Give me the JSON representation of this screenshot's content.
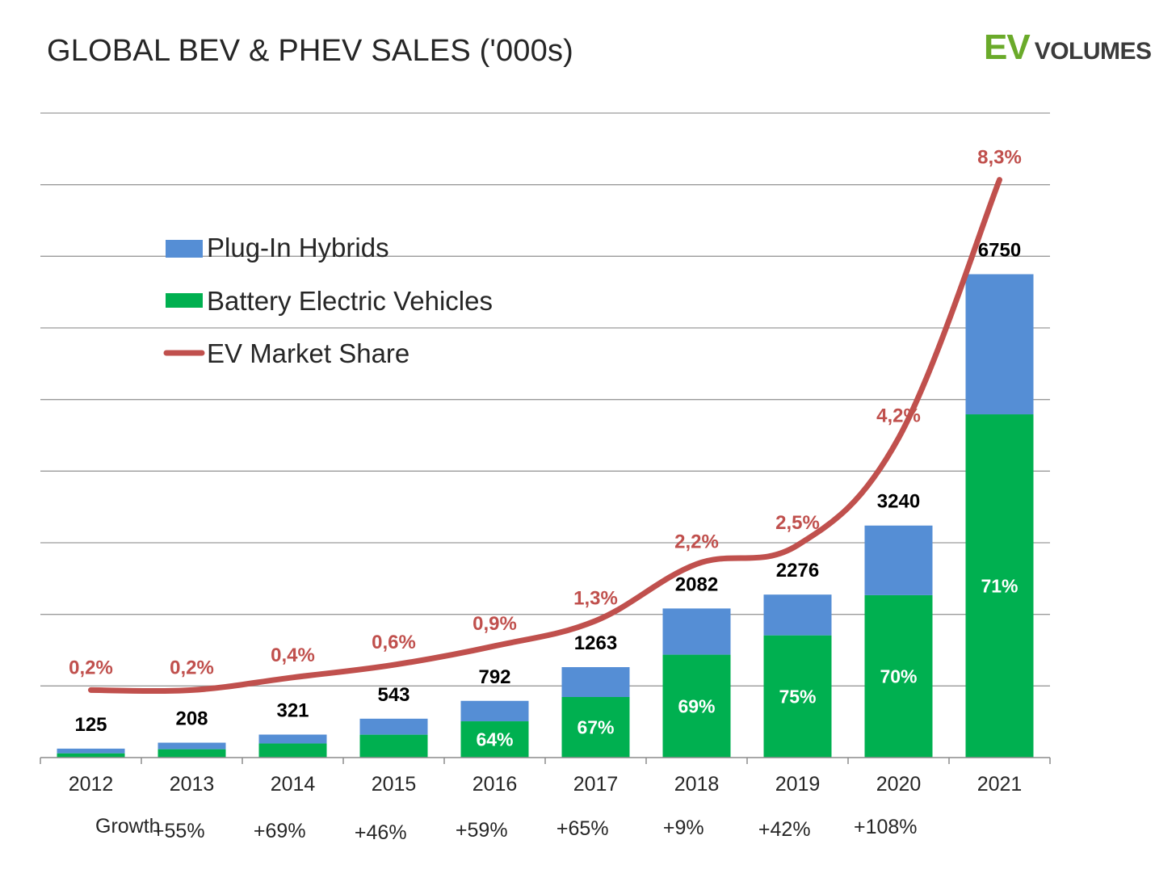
{
  "title": "GLOBAL BEV & PHEV SALES ('000s)",
  "logo": {
    "ev": "EV",
    "volumes": "VOLUMES"
  },
  "chart_data": {
    "type": "bar",
    "stacked": true,
    "title": "GLOBAL BEV & PHEV SALES ('000s)",
    "categories": [
      "2012",
      "2013",
      "2014",
      "2015",
      "2016",
      "2017",
      "2018",
      "2019",
      "2020",
      "2021"
    ],
    "totals": [
      125,
      208,
      321,
      543,
      792,
      1263,
      2082,
      2276,
      3240,
      6750
    ],
    "total_labels": [
      "125",
      "208",
      "321",
      "543",
      "792",
      "1263",
      "2082",
      "2276",
      "3240",
      "6750"
    ],
    "series": [
      {
        "name": "Battery Electric Vehicles",
        "color": "#00b050",
        "values": [
          60,
          117,
          197,
          320,
          507,
          846,
          1437,
          1707,
          2268,
          4793
        ]
      },
      {
        "name": "Plug-In Hybrids",
        "color": "#558ed5",
        "values": [
          65,
          91,
          124,
          223,
          285,
          417,
          645,
          569,
          972,
          1957
        ]
      }
    ],
    "bev_share_labels": [
      "",
      "",
      "",
      "",
      "64%",
      "67%",
      "69%",
      "75%",
      "70%",
      "71%"
    ],
    "line_series": {
      "name": "EV Market Share",
      "color": "#c0504d",
      "values": [
        0.2,
        0.2,
        0.4,
        0.6,
        0.9,
        1.3,
        2.2,
        2.5,
        4.2,
        8.3
      ],
      "labels": [
        "0,2%",
        "0,2%",
        "0,4%",
        "0,6%",
        "0,9%",
        "1,3%",
        "2,2%",
        "2,5%",
        "4,2%",
        "8,3%"
      ]
    },
    "growth": {
      "label": "Growth",
      "values": [
        "+55%",
        "+69%",
        "+46%",
        "+59%",
        "+65%",
        "+9%",
        "+42%",
        "+108%"
      ]
    },
    "ylim": [
      0,
      9000
    ],
    "grid": true,
    "legend": "top-left"
  }
}
